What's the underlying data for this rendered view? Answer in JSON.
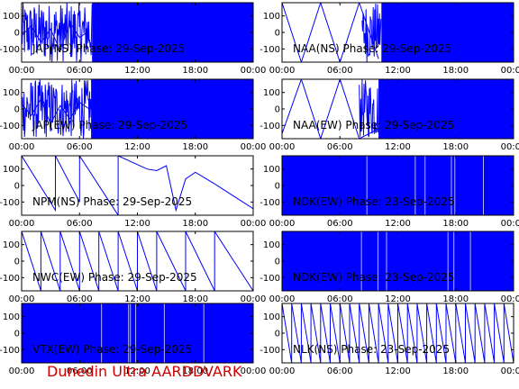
{
  "footer_text": "Dunedin Ultra AARDDVARK",
  "colors": {
    "trace": "#0000ff",
    "title": "#000000",
    "axis": "#000000",
    "footer": "#cc0000"
  },
  "chart_data": [
    {
      "type": "line",
      "title": "JAP(NS) Phase: 29-Sep-2025",
      "xlim": [
        0,
        24
      ],
      "ylim": [
        -180,
        180
      ],
      "x_ticks": [
        "00:00",
        "06:00",
        "12:00",
        "18:00",
        "00:00"
      ],
      "y_ticks": [
        "100",
        "0",
        "-100"
      ],
      "pattern": "dense",
      "solid_from_hour": 7.3,
      "series": [
        {
          "x": [
            0,
            1,
            2,
            3,
            4,
            5,
            6,
            7
          ],
          "y": [
            -20,
            40,
            -60,
            20,
            -110,
            60,
            -30,
            10
          ]
        }
      ]
    },
    {
      "type": "line",
      "title": "NAA(NS) Phase: 29-Sep-2025",
      "xlim": [
        0,
        24
      ],
      "ylim": [
        -180,
        180
      ],
      "x_ticks": [
        "00:00",
        "06:00",
        "12:00",
        "18:00",
        "00:00"
      ],
      "y_ticks": [
        "100",
        "0",
        "-100"
      ],
      "pattern": "sawtooth_then_dense",
      "solid_from_hour": 10.3,
      "series": [
        {
          "x": [
            0,
            2,
            4,
            6,
            8,
            10
          ],
          "y": [
            180,
            -180,
            180,
            -180,
            180,
            -160
          ]
        }
      ]
    },
    {
      "type": "line",
      "title": "JAP(EW) Phase: 29-Sep-2025",
      "xlim": [
        0,
        24
      ],
      "ylim": [
        -180,
        180
      ],
      "x_ticks": [
        "00:00",
        "06:00",
        "12:00",
        "18:00",
        "00:00"
      ],
      "y_ticks": [
        "100",
        "0",
        "-100"
      ],
      "pattern": "dense",
      "solid_from_hour": 7.2,
      "series": [
        {
          "x": [
            0,
            1,
            2,
            3,
            4,
            5,
            6,
            7
          ],
          "y": [
            30,
            -40,
            60,
            -90,
            20,
            -60,
            40,
            0
          ]
        }
      ]
    },
    {
      "type": "line",
      "title": "NAA(EW) Phase: 29-Sep-2025",
      "xlim": [
        0,
        24
      ],
      "ylim": [
        -180,
        180
      ],
      "x_ticks": [
        "00:00",
        "06:00",
        "12:00",
        "18:00",
        "00:00"
      ],
      "y_ticks": [
        "100",
        "0",
        "-100"
      ],
      "pattern": "sawtooth_then_dense",
      "solid_from_hour": 10.0,
      "series": [
        {
          "x": [
            0,
            2,
            4,
            6,
            8,
            10
          ],
          "y": [
            -150,
            180,
            -180,
            180,
            -180,
            -120
          ]
        }
      ]
    },
    {
      "type": "line",
      "title": "NPM(NS) Phase: 29-Sep-2025",
      "xlim": [
        0,
        24
      ],
      "ylim": [
        -180,
        180
      ],
      "x_ticks": [
        "00:00",
        "06:00",
        "12:00",
        "18:00",
        "00:00"
      ],
      "y_ticks": [
        "100",
        "0",
        "-100"
      ],
      "pattern": "sawtooth",
      "series": [
        {
          "x": [
            0,
            3.5,
            3.5,
            6,
            6,
            10,
            10,
            13,
            14,
            15,
            16,
            17,
            18,
            20,
            24
          ],
          "y": [
            180,
            -150,
            180,
            -100,
            180,
            -180,
            180,
            100,
            90,
            120,
            -150,
            40,
            80,
            10,
            -140
          ]
        }
      ]
    },
    {
      "type": "line",
      "title": "NDK(EW) Phase: 23-Sep-2025",
      "xlim": [
        0,
        24
      ],
      "ylim": [
        -180,
        180
      ],
      "x_ticks": [
        "00:00",
        "06:00",
        "12:00",
        "18:00",
        "00:00"
      ],
      "y_ticks": [
        "100",
        "0",
        "-100"
      ],
      "pattern": "dense_full",
      "solid_from_hour": 0,
      "series": [
        {
          "x": [
            0,
            24
          ],
          "y": [
            0,
            0
          ]
        }
      ]
    },
    {
      "type": "line",
      "title": "NWC(EW) Phase: 29-Sep-2025",
      "xlim": [
        0,
        24
      ],
      "ylim": [
        -180,
        180
      ],
      "x_ticks": [
        "00:00",
        "06:00",
        "12:00",
        "18:00",
        "00:00"
      ],
      "y_ticks": [
        "100",
        "0",
        "-100"
      ],
      "pattern": "sawtooth",
      "series": [
        {
          "x": [
            0,
            2,
            2,
            4,
            4,
            6,
            6,
            8,
            8,
            10,
            10,
            12,
            12,
            14,
            14,
            17,
            17,
            20,
            20,
            24
          ],
          "y": [
            180,
            -180,
            180,
            -180,
            180,
            -180,
            180,
            -180,
            180,
            -180,
            180,
            -180,
            180,
            -180,
            180,
            -180,
            180,
            -180,
            180,
            -180
          ]
        }
      ]
    },
    {
      "type": "line",
      "title": "NDK(EW) Phase: 23-Sep-2025",
      "xlim": [
        0,
        24
      ],
      "ylim": [
        -180,
        180
      ],
      "x_ticks": [
        "00:00",
        "06:00",
        "12:00",
        "18:00",
        "00:00"
      ],
      "y_ticks": [
        "100",
        "0",
        "-100"
      ],
      "pattern": "dense_full",
      "solid_from_hour": 0,
      "series": [
        {
          "x": [
            0,
            24
          ],
          "y": [
            0,
            0
          ]
        }
      ]
    },
    {
      "type": "line",
      "title": "VTX(EW) Phase: 29-Sep-2025",
      "xlim": [
        0,
        24
      ],
      "ylim": [
        -180,
        180
      ],
      "x_ticks": [
        "00:00",
        "06:00",
        "12:00",
        "18:00",
        "00:00"
      ],
      "y_ticks": [
        "100",
        "0",
        "-100"
      ],
      "pattern": "dense_full",
      "solid_from_hour": 0,
      "series": [
        {
          "x": [
            0,
            24
          ],
          "y": [
            0,
            0
          ]
        }
      ]
    },
    {
      "type": "line",
      "title": "NLK(NS) Phase: 23-Sep-2025",
      "xlim": [
        0,
        24
      ],
      "ylim": [
        -180,
        180
      ],
      "x_ticks": [
        "00:00",
        "06:00",
        "12:00",
        "18:00",
        "00:00"
      ],
      "y_ticks": [
        "100",
        "0",
        "-100"
      ],
      "pattern": "sawtooth_fast",
      "series": [
        {
          "x": [
            0,
            1,
            1,
            2,
            2,
            3,
            3,
            4,
            4,
            5,
            5,
            6,
            6,
            7,
            7,
            8,
            8,
            9,
            9,
            10,
            10,
            11,
            11,
            12,
            12,
            13,
            13,
            14,
            14,
            15,
            15,
            16,
            16,
            17,
            17,
            18,
            18,
            19,
            19,
            20,
            20,
            21,
            21,
            22,
            22,
            23,
            23,
            24
          ],
          "y": [
            180,
            -180,
            180,
            -180,
            180,
            -180,
            180,
            -180,
            180,
            -180,
            180,
            -180,
            180,
            -180,
            180,
            -180,
            180,
            -180,
            180,
            -180,
            180,
            -180,
            180,
            -180,
            180,
            -180,
            180,
            -180,
            180,
            -180,
            180,
            -180,
            180,
            -180,
            180,
            -180,
            180,
            -180,
            180,
            -180,
            180,
            -180,
            180,
            -180,
            180,
            -180,
            180,
            -180
          ]
        }
      ]
    }
  ]
}
